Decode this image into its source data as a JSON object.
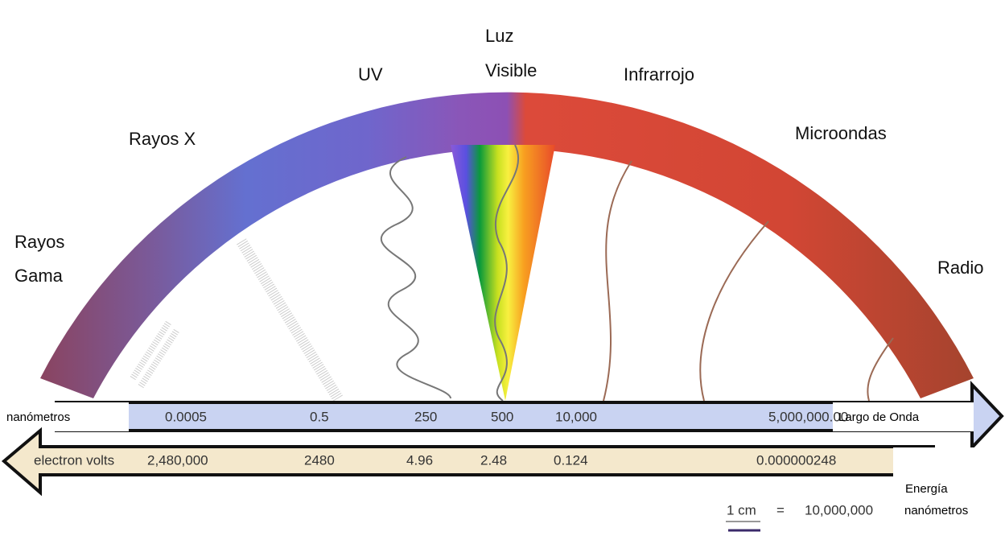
{
  "bands": [
    {
      "line1": "Rayos",
      "line2": "Gama"
    },
    {
      "line1": "Rayos X"
    },
    {
      "line1": "UV"
    },
    {
      "line1": "Luz",
      "line2": "Visible"
    },
    {
      "line1": "Infrarrojo"
    },
    {
      "line1": "Microondas"
    },
    {
      "line1": "Radio"
    }
  ],
  "wavelength": {
    "unit": "nanómetros",
    "title": "Largo de Onda",
    "values": [
      "0.0005",
      "0.5",
      "250",
      "500",
      "10,000",
      "5,000,000.00"
    ]
  },
  "energy": {
    "unit": "electron volts",
    "title": "Energía",
    "values": [
      "2,480,000",
      "2480",
      "4.96",
      "2.48",
      "0.124",
      "0.000000248"
    ]
  },
  "scale": {
    "length": "1 cm",
    "equals": "=",
    "value": "10,000,000",
    "unit": "nanómetros"
  }
}
